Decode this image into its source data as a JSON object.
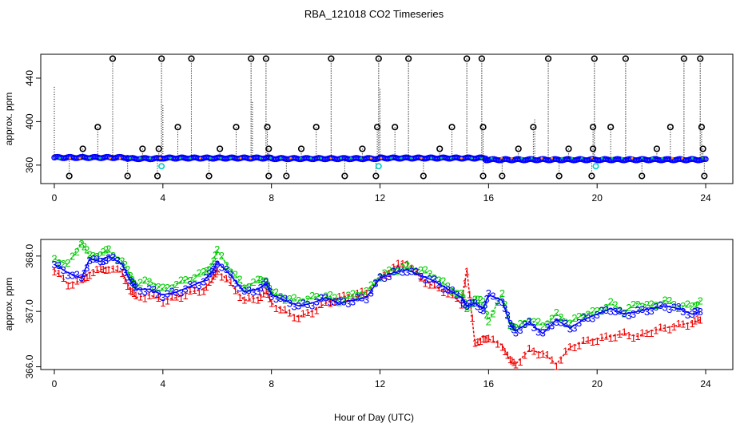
{
  "title": "RBA_121018  CO2 Timeseries",
  "xlabel": "Hour of Day (UTC)",
  "chart_data": [
    {
      "type": "scatter",
      "panel": "top",
      "ylabel": "approx. ppm",
      "xlim": [
        -0.5,
        25
      ],
      "ylim": [
        343,
        462
      ],
      "xticks": [
        0,
        4,
        8,
        12,
        16,
        20,
        24
      ],
      "yticks": [
        360,
        400,
        440
      ],
      "baseline_segments": [
        {
          "x0": 0.0,
          "x1": 2.7,
          "y": 367,
          "color": "#0000ff"
        },
        {
          "x0": 2.7,
          "x1": 3.9,
          "y": 366,
          "color": "#0000ff"
        },
        {
          "x0": 3.9,
          "x1": 8.0,
          "y": 366.5,
          "color": "#0000ff"
        },
        {
          "x0": 8.0,
          "x1": 12.0,
          "y": 366,
          "color": "#0000ff"
        },
        {
          "x0": 12.0,
          "x1": 15.9,
          "y": 366.5,
          "color": "#0000ff"
        },
        {
          "x0": 15.9,
          "x1": 24.0,
          "y": 365,
          "color": "#0000ff"
        }
      ],
      "outliers_high": [
        2.15,
        3.95,
        5.05,
        7.25,
        7.8,
        10.2,
        11.95,
        13.05,
        15.2,
        15.75,
        18.2,
        19.9,
        21.05,
        23.2,
        23.8
      ],
      "outliers_mid": [
        1.6,
        4.55,
        6.7,
        7.85,
        9.65,
        11.9,
        12.55,
        14.65,
        15.8,
        17.65,
        19.85,
        20.5,
        22.7,
        23.85
      ],
      "outliers_low_mid": [
        1.05,
        3.25,
        3.85,
        6.1,
        7.9,
        9.1,
        11.35,
        14.2,
        17.1,
        18.95,
        19.85,
        22.2,
        23.9
      ],
      "outliers_low": [
        0.55,
        2.7,
        3.8,
        5.7,
        7.9,
        8.55,
        10.7,
        11.85,
        13.6,
        15.8,
        16.5,
        18.6,
        19.8,
        21.65,
        23.95
      ],
      "outliers_high_y": 458,
      "outliers_mid_y": 395,
      "outliers_low_mid_y": 375,
      "outliers_low_y": 350,
      "cyan_points": [
        {
          "x": 3.95,
          "y": 359
        },
        {
          "x": 11.95,
          "y": 359
        },
        {
          "x": 19.95,
          "y": 359
        }
      ],
      "vertical_spikes": [
        {
          "x": 0.0,
          "y": 432
        },
        {
          "x": 2.15,
          "y": 458
        },
        {
          "x": 3.95,
          "y": 458
        },
        {
          "x": 4.0,
          "y": 415
        },
        {
          "x": 5.05,
          "y": 458
        },
        {
          "x": 7.25,
          "y": 458
        },
        {
          "x": 7.3,
          "y": 418
        },
        {
          "x": 7.8,
          "y": 458
        },
        {
          "x": 10.2,
          "y": 458
        },
        {
          "x": 11.95,
          "y": 458
        },
        {
          "x": 12.0,
          "y": 430
        },
        {
          "x": 13.05,
          "y": 458
        },
        {
          "x": 15.2,
          "y": 458
        },
        {
          "x": 15.75,
          "y": 458
        },
        {
          "x": 17.7,
          "y": 402
        },
        {
          "x": 18.2,
          "y": 458
        },
        {
          "x": 19.9,
          "y": 458
        },
        {
          "x": 21.05,
          "y": 458
        },
        {
          "x": 23.2,
          "y": 458
        },
        {
          "x": 23.8,
          "y": 458
        }
      ]
    },
    {
      "type": "line",
      "panel": "bottom",
      "ylabel": "approx. ppm",
      "xlim": [
        -0.5,
        25
      ],
      "ylim": [
        365.95,
        368.3
      ],
      "xticks": [
        0,
        4,
        8,
        12,
        16,
        20,
        24
      ],
      "yticks": [
        366.0,
        367.0,
        368.0
      ],
      "ytick_labels": [
        "366.0",
        "367.0",
        "368.0"
      ],
      "series": [
        {
          "name": "3",
          "color": "#0000ff",
          "marker": "3",
          "x": [
            0.0,
            0.5,
            1.0,
            1.3,
            1.7,
            2.0,
            2.5,
            2.8,
            3.0,
            3.5,
            4.0,
            4.5,
            5.0,
            5.5,
            5.8,
            6.0,
            6.5,
            7.0,
            7.5,
            7.8,
            8.0,
            8.5,
            9.0,
            9.5,
            10.0,
            10.5,
            11.0,
            11.5,
            12.0,
            12.5,
            13.0,
            13.5,
            14.0,
            14.5,
            15.0,
            15.2,
            15.5,
            15.8,
            16.0,
            16.5,
            16.8,
            17.0,
            17.5,
            18.0,
            18.5,
            19.0,
            19.5,
            20.0,
            20.5,
            21.0,
            21.5,
            22.0,
            22.5,
            23.0,
            23.5,
            23.8
          ],
          "y": [
            367.85,
            367.7,
            367.6,
            367.95,
            367.9,
            368.0,
            367.85,
            367.55,
            367.4,
            367.4,
            367.3,
            367.35,
            367.45,
            367.55,
            367.7,
            367.9,
            367.65,
            367.35,
            367.4,
            367.5,
            367.3,
            367.2,
            367.1,
            367.15,
            367.25,
            367.15,
            367.2,
            367.25,
            367.6,
            367.7,
            367.75,
            367.65,
            367.55,
            367.4,
            367.25,
            367.1,
            367.15,
            367.05,
            367.3,
            367.2,
            366.75,
            366.65,
            366.8,
            366.6,
            366.85,
            366.7,
            366.85,
            366.95,
            367.05,
            366.95,
            367.0,
            367.05,
            367.1,
            367.05,
            366.95,
            367.0
          ]
        },
        {
          "name": "2",
          "color": "#00cc00",
          "marker": "2",
          "x": [
            0.0,
            0.5,
            1.0,
            1.3,
            1.7,
            2.0,
            2.5,
            2.8,
            3.0,
            3.5,
            4.0,
            4.5,
            5.0,
            5.5,
            5.8,
            6.0,
            6.5,
            7.0,
            7.5,
            7.8,
            8.0,
            8.5,
            9.0,
            9.5,
            10.0,
            10.5,
            11.0,
            11.5,
            12.0,
            12.5,
            13.0,
            13.5,
            14.0,
            14.5,
            15.0,
            15.2,
            15.5,
            15.8,
            16.0,
            16.5,
            16.8,
            17.0,
            17.5,
            18.0,
            18.5,
            19.0,
            19.5,
            20.0,
            20.5,
            21.0,
            21.5,
            22.0,
            22.5,
            23.0,
            23.5,
            23.8
          ],
          "y": [
            367.95,
            367.85,
            368.25,
            368.0,
            368.05,
            368.1,
            367.9,
            367.65,
            367.5,
            367.55,
            367.4,
            367.5,
            367.6,
            367.7,
            367.85,
            368.1,
            367.75,
            367.45,
            367.55,
            367.6,
            367.35,
            367.25,
            367.2,
            367.25,
            367.3,
            367.2,
            367.3,
            367.35,
            367.65,
            367.75,
            367.8,
            367.75,
            367.65,
            367.45,
            367.3,
            367.05,
            367.25,
            367.15,
            366.85,
            367.3,
            366.8,
            366.7,
            366.85,
            366.75,
            366.95,
            366.8,
            366.95,
            367.0,
            367.15,
            367.0,
            367.15,
            367.1,
            367.2,
            367.1,
            367.1,
            367.2
          ]
        },
        {
          "name": "1",
          "color": "#ee0000",
          "marker": "1",
          "x": [
            0.0,
            0.5,
            1.0,
            1.3,
            1.7,
            2.0,
            2.5,
            2.8,
            3.0,
            3.5,
            4.0,
            4.5,
            5.0,
            5.5,
            5.8,
            6.0,
            6.5,
            7.0,
            7.5,
            7.8,
            8.0,
            8.5,
            9.0,
            9.5,
            10.0,
            10.5,
            11.0,
            11.5,
            12.0,
            12.5,
            13.0,
            13.5,
            14.0,
            14.5,
            15.0,
            15.2,
            15.5,
            15.8,
            16.0,
            16.5,
            16.8,
            17.0,
            17.5,
            18.0,
            18.5,
            19.0,
            19.5,
            20.0,
            20.5,
            21.0,
            21.5,
            22.0,
            22.5,
            23.0,
            23.5,
            23.8
          ],
          "y": [
            367.75,
            367.5,
            367.55,
            367.7,
            367.75,
            367.8,
            367.7,
            367.4,
            367.25,
            367.3,
            367.2,
            367.25,
            367.35,
            367.4,
            367.55,
            367.75,
            367.5,
            367.2,
            367.25,
            367.35,
            367.15,
            367.0,
            366.9,
            367.0,
            367.15,
            367.25,
            367.3,
            367.35,
            367.6,
            367.8,
            367.9,
            367.6,
            367.45,
            367.35,
            367.15,
            367.75,
            366.4,
            366.55,
            366.5,
            366.4,
            366.1,
            366.05,
            366.3,
            366.25,
            366.05,
            366.35,
            366.45,
            366.5,
            366.55,
            366.6,
            366.55,
            366.65,
            366.7,
            366.75,
            366.8,
            366.85
          ]
        }
      ]
    }
  ]
}
